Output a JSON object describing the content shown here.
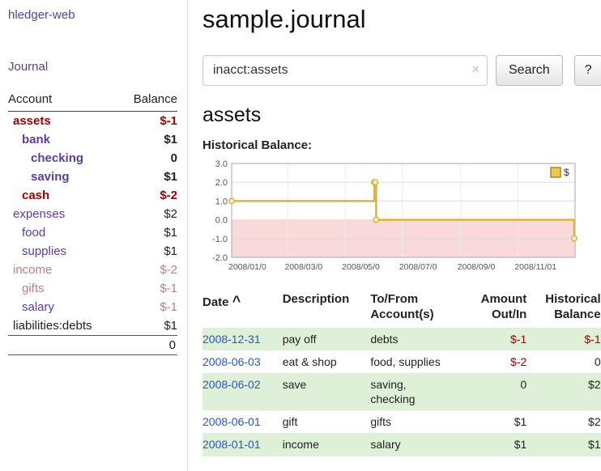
{
  "app": {
    "title": "hledger-web"
  },
  "sidebar": {
    "journal_link": "Journal",
    "table": {
      "col_account": "Account",
      "col_balance": "Balance",
      "rows": [
        {
          "name": "assets",
          "balance": "$-1",
          "indent": 0,
          "bold": true,
          "name_style": "red",
          "balance_style": "red"
        },
        {
          "name": "bank",
          "balance": "$1",
          "indent": 1,
          "bold": true,
          "name_style": "purple",
          "balance_style": "dark"
        },
        {
          "name": "checking",
          "balance": "0",
          "indent": 2,
          "bold": true,
          "name_style": "purple",
          "balance_style": "dark"
        },
        {
          "name": "saving",
          "balance": "$1",
          "indent": 2,
          "bold": true,
          "name_style": "purple",
          "balance_style": "dark"
        },
        {
          "name": "cash",
          "balance": "$-2",
          "indent": 1,
          "bold": true,
          "name_style": "red",
          "balance_style": "red"
        },
        {
          "name": "expenses",
          "balance": "$2",
          "indent": 0,
          "bold": false,
          "name_style": "purple",
          "balance_style": "dark"
        },
        {
          "name": "food",
          "balance": "$1",
          "indent": 1,
          "bold": false,
          "name_style": "purple",
          "balance_style": "dark"
        },
        {
          "name": "supplies",
          "balance": "$1",
          "indent": 1,
          "bold": false,
          "name_style": "purple",
          "balance_style": "dark"
        },
        {
          "name": "income",
          "balance": "$-2",
          "indent": 0,
          "bold": false,
          "name_style": "redpale",
          "balance_style": "redpale"
        },
        {
          "name": "gifts",
          "balance": "$-1",
          "indent": 1,
          "bold": false,
          "name_style": "redpale",
          "balance_style": "redpale"
        },
        {
          "name": "salary",
          "balance": "$-1",
          "indent": 1,
          "bold": false,
          "name_style": "purple",
          "balance_style": "redpale"
        },
        {
          "name": "liabilities:debts",
          "balance": "$1",
          "indent": 0,
          "bold": false,
          "name_style": "dark",
          "balance_style": "dark"
        }
      ],
      "total": "0"
    }
  },
  "main": {
    "title": "sample.journal",
    "search": {
      "value": "inacct:assets",
      "clear_icon": "×",
      "button": "Search",
      "help_button": "?"
    },
    "account_heading": "assets",
    "chart_label": "Historical Balance:"
  },
  "chart_data": {
    "type": "line",
    "step": true,
    "title": "Historical Balance",
    "series": [
      {
        "name": "$",
        "color": "#dcb53e",
        "points": [
          {
            "date": "2008-01-01",
            "day": 0,
            "value": 1
          },
          {
            "date": "2008-06-01",
            "day": 152,
            "value": 2
          },
          {
            "date": "2008-06-02",
            "day": 153,
            "value": 2
          },
          {
            "date": "2008-06-03",
            "day": 154,
            "value": 0
          },
          {
            "date": "2008-12-31",
            "day": 365,
            "value": -1
          }
        ]
      }
    ],
    "x_domain_days": [
      0,
      366
    ],
    "ylim": [
      -2,
      3
    ],
    "yticks": [
      3,
      2,
      1,
      0,
      -1,
      -2
    ],
    "xticks": [
      {
        "day": 0,
        "label": "2008/01/0"
      },
      {
        "day": 60,
        "label": "2008/03/0"
      },
      {
        "day": 121,
        "label": "2008/05/0"
      },
      {
        "day": 182,
        "label": "2008/07/0"
      },
      {
        "day": 244,
        "label": "2008/09/0"
      },
      {
        "day": 305,
        "label": "2008/11/01"
      }
    ],
    "legend": [
      {
        "label": "$",
        "swatch_color": "#ecc94b"
      }
    ],
    "legend_position": "top-right",
    "grid": true,
    "negative_region_color": "#f9d9d9"
  },
  "register": {
    "headers": {
      "date": "Date",
      "sort_indicator": "^",
      "description": "Description",
      "account": "To/From Account(s)",
      "amount": "Amount Out/In",
      "balance": "Historical Balance"
    },
    "rows": [
      {
        "date": "2008-12-31",
        "description": "pay off",
        "account": "debts",
        "amount": "$-1",
        "balance": "$-1",
        "amount_negative": true,
        "balance_negative": true
      },
      {
        "date": "2008-06-03",
        "description": "eat & shop",
        "account": "food, supplies",
        "amount": "$-2",
        "balance": "0",
        "amount_negative": true,
        "balance_negative": false
      },
      {
        "date": "2008-06-02",
        "description": "save",
        "account": "saving, checking",
        "amount": "0",
        "balance": "$2",
        "amount_negative": false,
        "balance_negative": false
      },
      {
        "date": "2008-06-01",
        "description": "gift",
        "account": "gifts",
        "amount": "$1",
        "balance": "$2",
        "amount_negative": false,
        "balance_negative": false
      },
      {
        "date": "2008-01-01",
        "description": "income",
        "account": "salary",
        "amount": "$1",
        "balance": "$1",
        "amount_negative": false,
        "balance_negative": false
      }
    ]
  }
}
